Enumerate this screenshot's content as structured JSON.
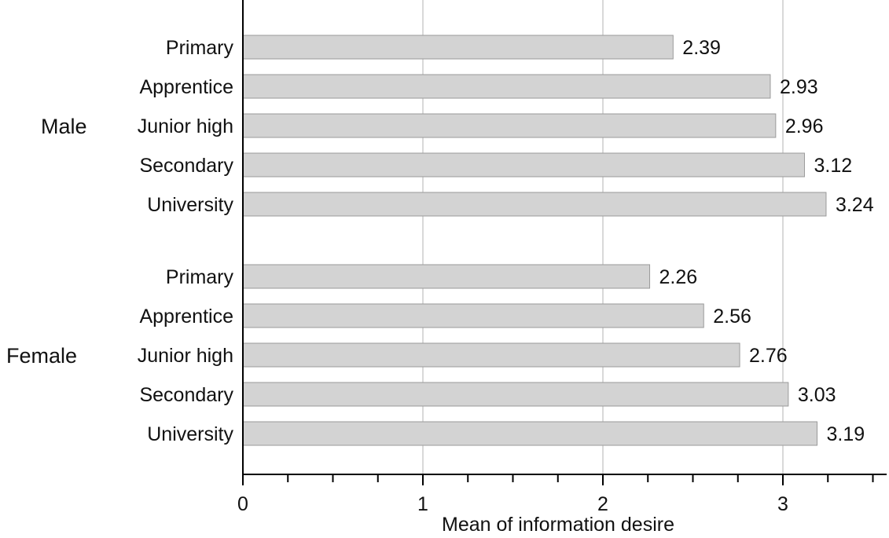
{
  "chart_data": {
    "type": "bar",
    "orientation": "horizontal",
    "title": "",
    "xlabel": "Mean of information desire",
    "ylabel": "",
    "xlim": [
      0,
      3.6
    ],
    "x_ticks": [
      0,
      1,
      2,
      3
    ],
    "grid": true,
    "bar_color": "#d3d3d3",
    "groups": [
      {
        "name": "Male",
        "categories": [
          "Primary",
          "Apprentice",
          "Junior high",
          "Secondary",
          "University"
        ],
        "values": [
          2.39,
          2.93,
          2.96,
          3.12,
          3.24
        ],
        "value_labels": [
          "2.39",
          "2.93",
          "2.96",
          "3.12",
          "3.24"
        ]
      },
      {
        "name": "Female",
        "categories": [
          "Primary",
          "Apprentice",
          "Junior high",
          "Secondary",
          "University"
        ],
        "values": [
          2.26,
          2.56,
          2.76,
          3.03,
          3.19
        ],
        "value_labels": [
          "2.26",
          "2.56",
          "2.76",
          "3.03",
          "3.19"
        ]
      }
    ]
  }
}
